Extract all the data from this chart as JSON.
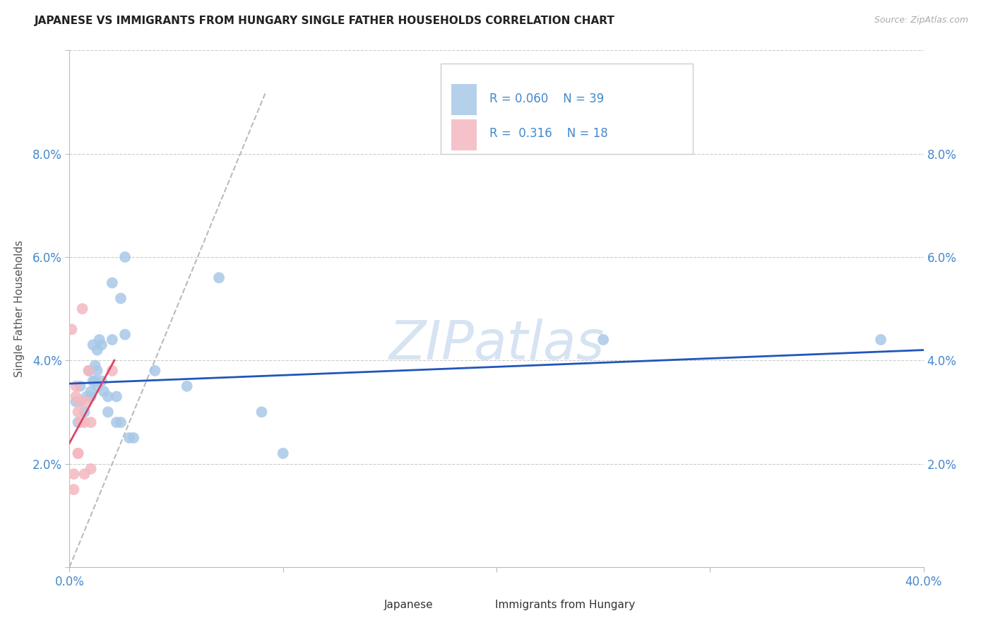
{
  "title": "JAPANESE VS IMMIGRANTS FROM HUNGARY SINGLE FATHER HOUSEHOLDS CORRELATION CHART",
  "source": "Source: ZipAtlas.com",
  "ylabel": "Single Father Households",
  "watermark": "ZIPatlas",
  "xlim": [
    0,
    0.4
  ],
  "ylim": [
    0,
    0.1
  ],
  "yticks": [
    0.0,
    0.02,
    0.04,
    0.06,
    0.08,
    0.1
  ],
  "xticks": [
    0.0,
    0.1,
    0.2,
    0.3,
    0.4
  ],
  "ytick_labels": [
    "",
    "2.0%",
    "4.0%",
    "6.0%",
    "8.0%",
    ""
  ],
  "xtick_labels": [
    "0.0%",
    "",
    "",
    "",
    "40.0%"
  ],
  "blue_color": "#a8c8e8",
  "pink_color": "#f4b8c0",
  "line_blue": "#2255bb",
  "line_pink": "#dd4466",
  "diag_color": "#bbbbbb",
  "tick_color": "#4488cc",
  "label_color": "#555555",
  "blue_points": [
    [
      0.003,
      0.032
    ],
    [
      0.004,
      0.028
    ],
    [
      0.005,
      0.035
    ],
    [
      0.005,
      0.032
    ],
    [
      0.007,
      0.03
    ],
    [
      0.008,
      0.033
    ],
    [
      0.009,
      0.038
    ],
    [
      0.01,
      0.034
    ],
    [
      0.01,
      0.033
    ],
    [
      0.011,
      0.043
    ],
    [
      0.011,
      0.036
    ],
    [
      0.012,
      0.036
    ],
    [
      0.012,
      0.039
    ],
    [
      0.013,
      0.035
    ],
    [
      0.013,
      0.038
    ],
    [
      0.013,
      0.042
    ],
    [
      0.014,
      0.044
    ],
    [
      0.015,
      0.043
    ],
    [
      0.015,
      0.036
    ],
    [
      0.016,
      0.034
    ],
    [
      0.018,
      0.03
    ],
    [
      0.018,
      0.033
    ],
    [
      0.02,
      0.044
    ],
    [
      0.02,
      0.055
    ],
    [
      0.022,
      0.033
    ],
    [
      0.022,
      0.028
    ],
    [
      0.024,
      0.028
    ],
    [
      0.024,
      0.052
    ],
    [
      0.026,
      0.045
    ],
    [
      0.026,
      0.06
    ],
    [
      0.028,
      0.025
    ],
    [
      0.03,
      0.025
    ],
    [
      0.04,
      0.038
    ],
    [
      0.055,
      0.035
    ],
    [
      0.07,
      0.056
    ],
    [
      0.09,
      0.03
    ],
    [
      0.1,
      0.022
    ],
    [
      0.25,
      0.044
    ],
    [
      0.38,
      0.044
    ]
  ],
  "pink_points": [
    [
      0.001,
      0.046
    ],
    [
      0.002,
      0.015
    ],
    [
      0.002,
      0.018
    ],
    [
      0.003,
      0.033
    ],
    [
      0.003,
      0.035
    ],
    [
      0.004,
      0.022
    ],
    [
      0.004,
      0.022
    ],
    [
      0.004,
      0.03
    ],
    [
      0.005,
      0.028
    ],
    [
      0.005,
      0.032
    ],
    [
      0.006,
      0.05
    ],
    [
      0.007,
      0.028
    ],
    [
      0.007,
      0.018
    ],
    [
      0.008,
      0.032
    ],
    [
      0.009,
      0.038
    ],
    [
      0.01,
      0.028
    ],
    [
      0.01,
      0.019
    ],
    [
      0.02,
      0.038
    ]
  ],
  "blue_line_x": [
    0.0,
    0.4
  ],
  "blue_line_y": [
    0.0355,
    0.042
  ],
  "pink_line_x": [
    0.0,
    0.021
  ],
  "pink_line_y": [
    0.024,
    0.04
  ],
  "diag_line_x": [
    0.0,
    0.092
  ],
  "diag_line_y": [
    0.0,
    0.092
  ],
  "title_fontsize": 11,
  "tick_fontsize": 12,
  "legend_fontsize": 12,
  "ylabel_fontsize": 11
}
